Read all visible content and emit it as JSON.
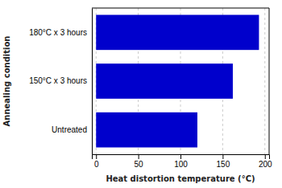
{
  "chart_data": {
    "type": "bar",
    "orientation": "horizontal",
    "categories": [
      "Untreated",
      "150°C x 3 hours",
      "180°C x 3 hours"
    ],
    "values": [
      120,
      162,
      193
    ],
    "color": "#0000CC",
    "xlabel": "Heat distortion temperature (°C)",
    "ylabel": "Annealing condition",
    "xlim": [
      -5,
      205
    ],
    "xticks": [
      0,
      50,
      100,
      150,
      200
    ],
    "grid": true
  }
}
